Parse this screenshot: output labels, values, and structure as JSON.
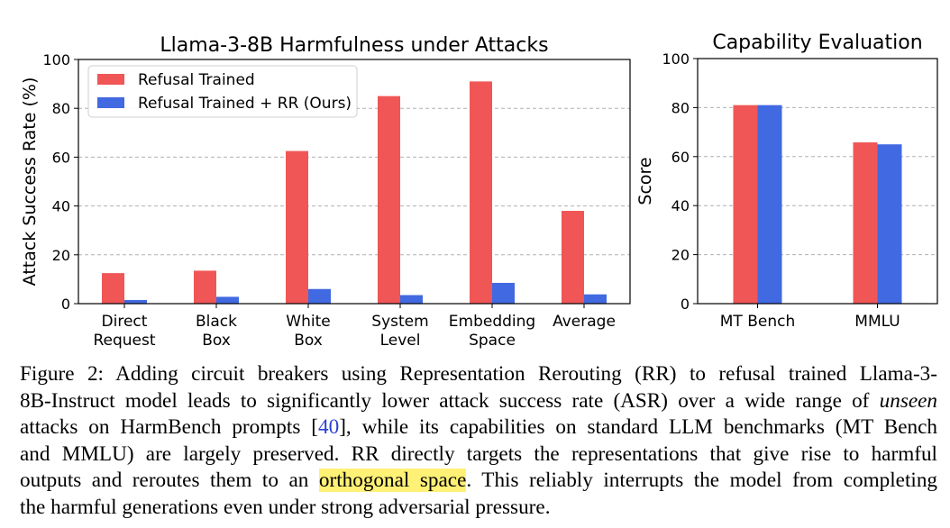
{
  "chart_data": [
    {
      "type": "bar",
      "title": "Llama-3-8B Harmfulness under Attacks",
      "ylabel": "Attack Success Rate (%)",
      "xlabel": "",
      "ylim": [
        0,
        100
      ],
      "yticks": [
        0,
        20,
        40,
        60,
        80,
        100
      ],
      "grid": "horizontal dashed",
      "legend_position": "top-left",
      "categories": [
        [
          "Direct",
          "Request"
        ],
        [
          "Black",
          "Box"
        ],
        [
          "White",
          "Box"
        ],
        [
          "System",
          "Level"
        ],
        [
          "Embedding",
          "Space"
        ],
        [
          "Average"
        ]
      ],
      "series": [
        {
          "name": "Refusal Trained",
          "color": "#f05656",
          "values": [
            12.5,
            13.5,
            62.5,
            85,
            91,
            38
          ]
        },
        {
          "name": "Refusal Trained + RR (Ours)",
          "color": "#4169e1",
          "values": [
            1.5,
            2.8,
            6,
            3.5,
            8.5,
            3.8
          ]
        }
      ]
    },
    {
      "type": "bar",
      "title": "Capability Evaluation",
      "ylabel": "Score",
      "xlabel": "",
      "ylim": [
        0,
        100
      ],
      "yticks": [
        0,
        20,
        40,
        60,
        80,
        100
      ],
      "grid": "horizontal dashed",
      "categories": [
        [
          "MT Bench"
        ],
        [
          "MMLU"
        ]
      ],
      "series": [
        {
          "name": "Refusal Trained",
          "color": "#f05656",
          "values": [
            81,
            65.8
          ]
        },
        {
          "name": "Refusal Trained + RR (Ours)",
          "color": "#4169e1",
          "values": [
            81,
            65
          ]
        }
      ]
    }
  ],
  "caption": {
    "label": "Figure 2:",
    "l1": "Adding circuit breakers using Representation Rerouting (RR) to refusal trained Llama-3-",
    "l2a": "8B-Instruct model leads to significantly lower attack success rate (ASR) over a wide range of",
    "l2b": "unseen",
    "l3a": "attacks on HarmBench prompts [",
    "l3cite": "40",
    "l3b": "], while its capabilities on standard LLM benchmarks (MT Bench",
    "l4": "and MMLU) are largely preserved. RR directly targets the representations that give rise to harmful",
    "l5a": "outputs and reroutes them to an",
    "l5hl": "orthogonal space",
    "l5b": ". This reliably interrupts the model from completing",
    "l6": "the harmful generations even under strong adversarial pressure."
  }
}
